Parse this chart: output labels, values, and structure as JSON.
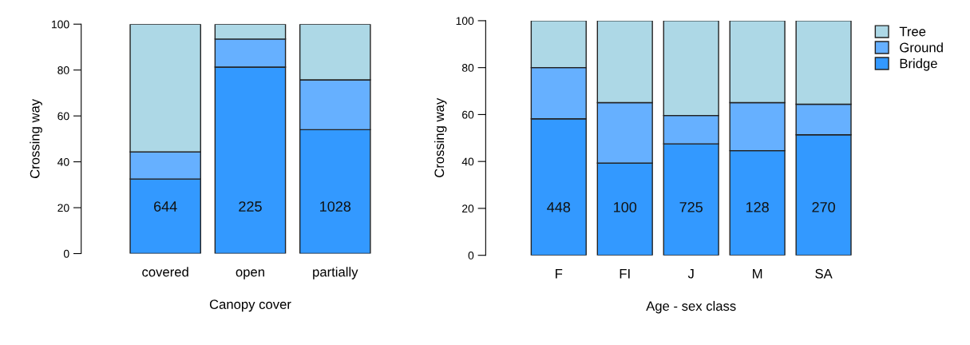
{
  "chart_data": [
    {
      "type": "bar",
      "stacked": true,
      "xlabel": "Canopy cover",
      "ylabel": "Crossing way",
      "categories": [
        "covered",
        "open",
        "partially"
      ],
      "ylim": [
        0,
        100
      ],
      "yticks": [
        0,
        20,
        40,
        60,
        80,
        100
      ],
      "grid": false,
      "legend": false,
      "series": [
        {
          "color": "#3399ff",
          "values": [
            32.5,
            81.3,
            54.0
          ]
        },
        {
          "color": "#66b0ff",
          "values": [
            11.8,
            12.2,
            21.7
          ]
        },
        {
          "color": "#add8e6",
          "values": [
            55.7,
            6.5,
            24.3
          ]
        }
      ],
      "annotations": [
        "644",
        "225",
        "1028"
      ]
    },
    {
      "type": "bar",
      "stacked": true,
      "xlabel": "Age - sex class",
      "ylabel": "Crossing way",
      "categories": [
        "F",
        "FI",
        "J",
        "M",
        "SA"
      ],
      "ylim": [
        0,
        100
      ],
      "yticks": [
        0,
        20,
        40,
        60,
        80,
        100
      ],
      "grid": false,
      "legend": "top right",
      "series": [
        {
          "name": "Bridge",
          "color": "#3399ff",
          "values": [
            58.2,
            39.3,
            47.5,
            44.6,
            51.4
          ]
        },
        {
          "name": "Ground",
          "color": "#66b0ff",
          "values": [
            21.8,
            25.8,
            12.1,
            20.5,
            13.0
          ]
        },
        {
          "name": "Tree",
          "color": "#add8e6",
          "values": [
            20.0,
            34.9,
            40.4,
            34.9,
            35.6
          ]
        }
      ],
      "annotations": [
        "448",
        "100",
        "725",
        "128",
        "270"
      ]
    }
  ]
}
